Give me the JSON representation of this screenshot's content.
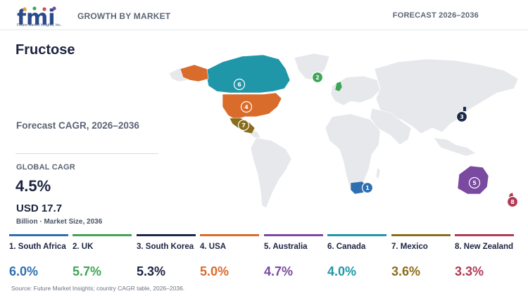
{
  "brand": {
    "logo_text": "fmi",
    "tagline": "Future Market Insights, Inc."
  },
  "header": {
    "left": "GROWTH BY MARKET",
    "right": "FORECAST 2026–2036"
  },
  "title": "Fructose",
  "forecast_label": "Forecast CAGR, 2026–2036",
  "global": {
    "label": "GLOBAL CAGR",
    "value": "4.5%",
    "market_value": "USD 17.7",
    "market_caption": "Billion · Market Size, 2036"
  },
  "countries": [
    {
      "rank": "1",
      "label": "1. South Africa",
      "cagr": "6.0%",
      "color": "#2f6fb1"
    },
    {
      "rank": "2",
      "label": "2. UK",
      "cagr": "5.7%",
      "color": "#3fa556"
    },
    {
      "rank": "3",
      "label": "3. South Korea",
      "cagr": "5.3%",
      "color": "#1b2a4a"
    },
    {
      "rank": "4",
      "label": "4. USA",
      "cagr": "5.0%",
      "color": "#d96b2b"
    },
    {
      "rank": "5",
      "label": "5. Australia",
      "cagr": "4.7%",
      "color": "#7a4aa0"
    },
    {
      "rank": "6",
      "label": "6. Canada",
      "cagr": "4.0%",
      "color": "#1f97a8"
    },
    {
      "rank": "7",
      "label": "7. Mexico",
      "cagr": "3.6%",
      "color": "#8a6d1c"
    },
    {
      "rank": "8",
      "label": "8. New Zealand",
      "cagr": "3.3%",
      "color": "#b23a55"
    }
  ],
  "source": "Source: Future Market Insights; country CAGR table, 2026–2036."
}
